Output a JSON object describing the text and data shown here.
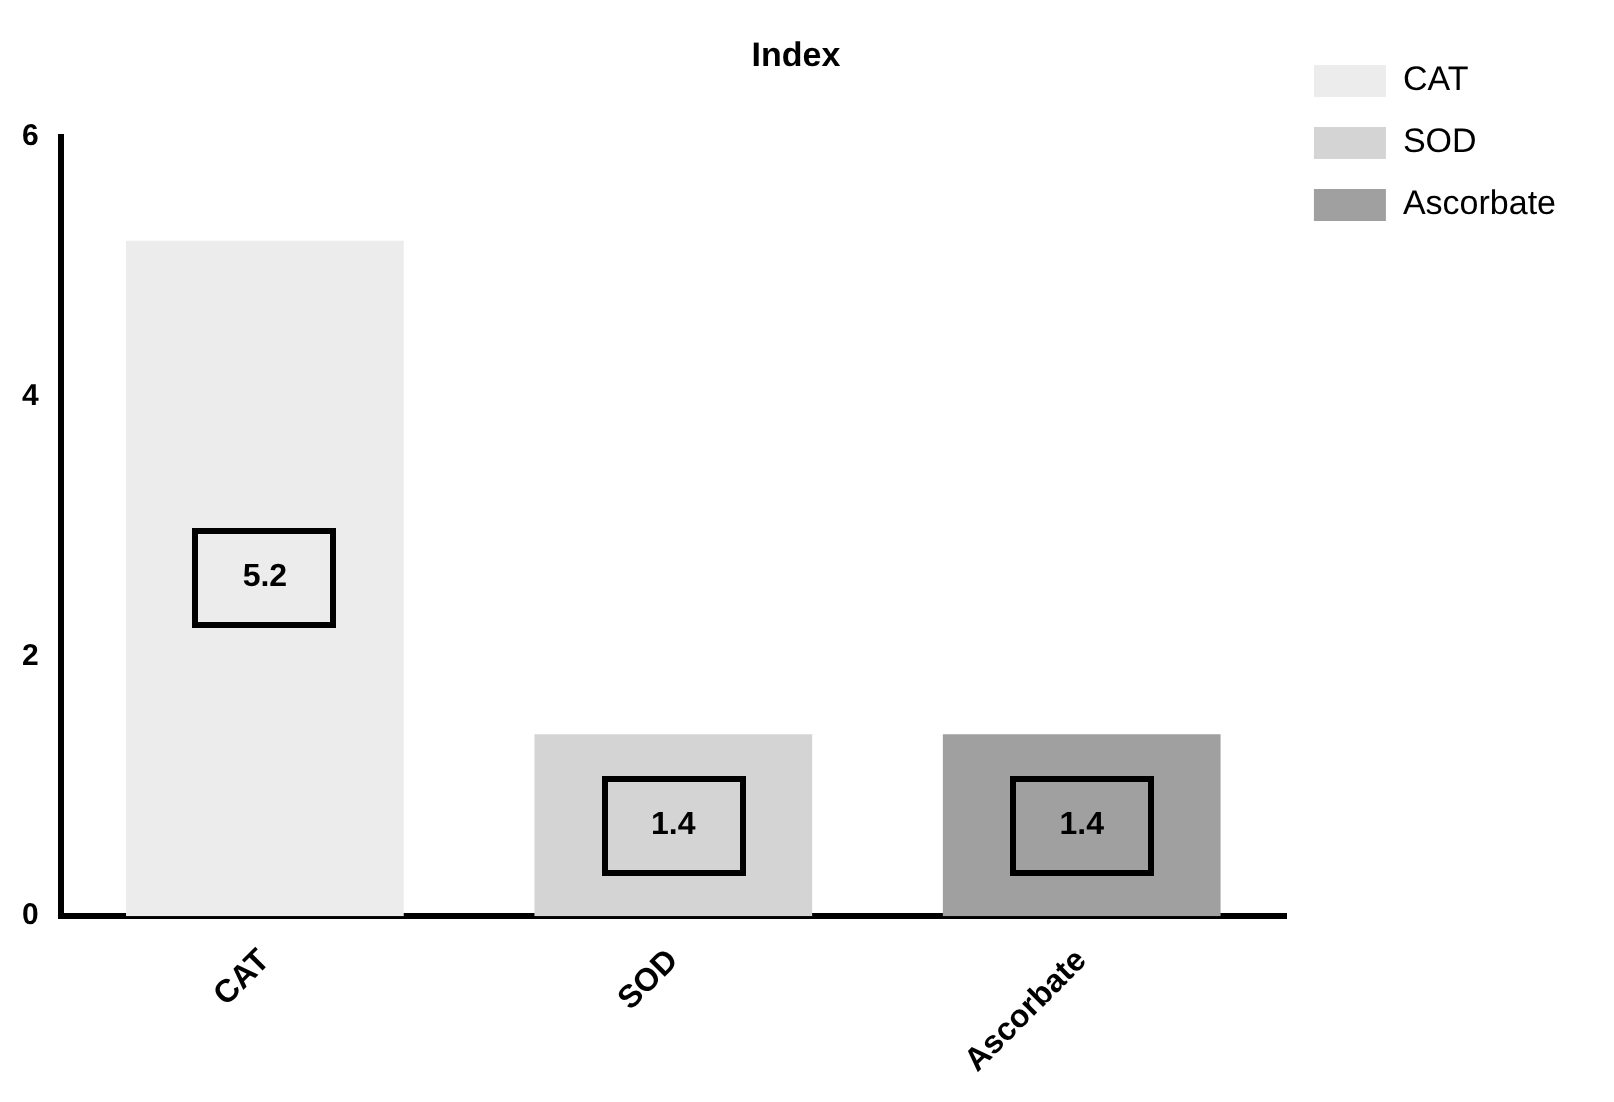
{
  "chart_data": {
    "type": "bar",
    "title": "Index",
    "categories": [
      "CAT",
      "SOD",
      "Ascorbate"
    ],
    "series": [
      {
        "name": "CAT",
        "color": "#ececec",
        "values": [
          5.2,
          null,
          null
        ]
      },
      {
        "name": "SOD",
        "color": "#d4d4d4",
        "values": [
          null,
          1.4,
          null
        ]
      },
      {
        "name": "Ascorbate",
        "color": "#a0a0a0",
        "values": [
          null,
          null,
          1.4
        ]
      }
    ],
    "ylim": [
      0,
      6
    ],
    "yticks": [
      0,
      2,
      4,
      6
    ],
    "data_labels": true,
    "legend": "top right",
    "grid": false
  }
}
